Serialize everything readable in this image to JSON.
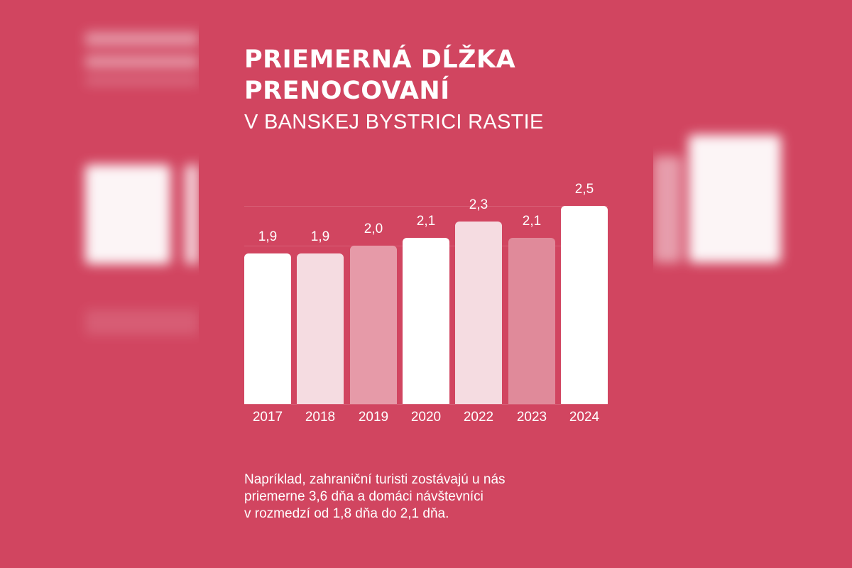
{
  "header": {
    "title_line1": "PRIEMERNÁ DĹŽKA",
    "title_line2": "PRENOCOVANÍ",
    "subtitle": "V BANSKEJ BYSTRICI RASTIE"
  },
  "chart_data": {
    "type": "bar",
    "title": "PRIEMERNÁ DĹŽKA PRENOCOVANÍ V BANSKEJ BYSTRICI RASTIE",
    "xlabel": "",
    "ylabel": "",
    "categories": [
      "2017",
      "2018",
      "2019",
      "2020",
      "2022",
      "2023",
      "2024"
    ],
    "values": [
      1.9,
      1.9,
      2.0,
      2.1,
      2.3,
      2.1,
      2.5
    ],
    "value_labels": [
      "1,9",
      "1,9",
      "2,0",
      "2,1",
      "2,3",
      "2,1",
      "2,5"
    ],
    "bar_colors": [
      "#FFFFFF",
      "#F5DCE1",
      "#E69AA8",
      "#FFFFFF",
      "#F5DCE1",
      "#E08A9A",
      "#FFFFFF"
    ],
    "ylim": [
      0,
      2.5
    ],
    "grid": true,
    "legend": "none"
  },
  "footnote": {
    "line1": "Napríklad, zahraniční turisti zostávajú u nás",
    "line2": "priemerne 3,6 dňa a domáci návštevníci",
    "line3": "v rozmedzí od 1,8 dňa do 2,1 dňa."
  },
  "colors": {
    "background": "#D14560",
    "text": "#FFFFFF"
  }
}
